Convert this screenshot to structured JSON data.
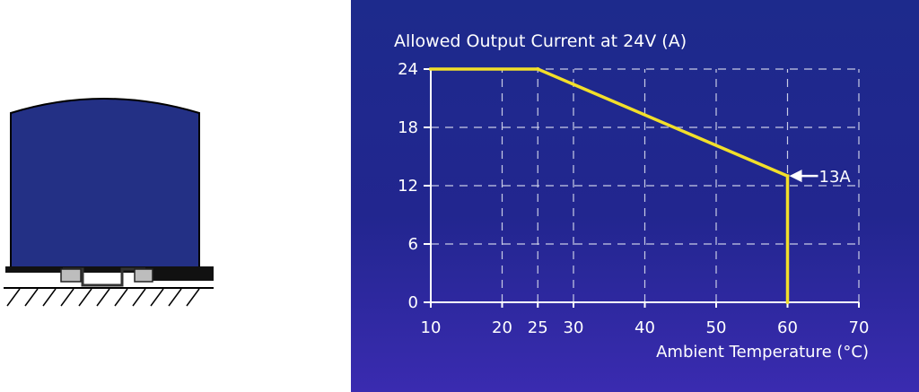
{
  "colors": {
    "panel_bg": "#22268f",
    "line": "#f2df2a",
    "grid": "#c8cbe6",
    "axis": "#ffffff",
    "device_fill": "#233085"
  },
  "chart_data": {
    "type": "line",
    "title": "Allowed Output Current at 24V (A)",
    "xlabel": "Ambient Temperature (°C)",
    "ylabel": "",
    "xlim": [
      10,
      70
    ],
    "ylim": [
      0,
      24
    ],
    "x_ticks": [
      10,
      20,
      25,
      30,
      40,
      50,
      60,
      70
    ],
    "y_ticks": [
      0,
      6,
      12,
      18,
      24
    ],
    "x_grid": [
      20,
      25,
      30,
      40,
      50,
      60,
      70
    ],
    "y_grid": [
      6,
      12,
      18,
      24
    ],
    "grid": "dashed",
    "series": [
      {
        "points": [
          [
            10,
            24
          ],
          [
            25,
            24
          ],
          [
            60,
            13
          ],
          [
            60,
            0
          ]
        ]
      }
    ],
    "annotations": [
      {
        "text": "13A",
        "x": 60,
        "y": 13
      }
    ]
  }
}
